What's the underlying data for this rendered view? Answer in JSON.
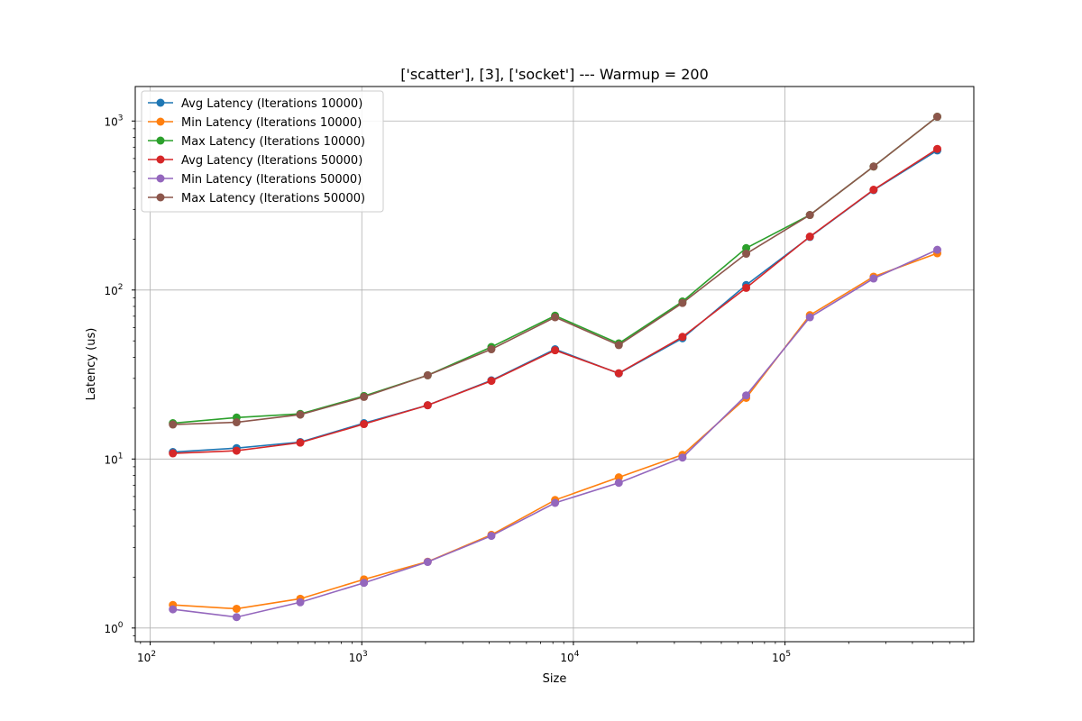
{
  "chart_data": {
    "type": "line",
    "title": "['scatter'], [3], ['socket']  --- Warmup = 200",
    "xlabel": "Size",
    "ylabel": "Latency (us)",
    "xscale": "log",
    "yscale": "log",
    "xlim": [
      85,
      780000
    ],
    "ylim": [
      0.83,
      1600
    ],
    "x_ticks": [
      100,
      1000,
      10000,
      100000
    ],
    "x_tick_labels": [
      {
        "base": "10",
        "exp": "2"
      },
      {
        "base": "10",
        "exp": "3"
      },
      {
        "base": "10",
        "exp": "4"
      },
      {
        "base": "10",
        "exp": "5"
      }
    ],
    "y_ticks": [
      1,
      10,
      100,
      1000
    ],
    "y_tick_labels": [
      {
        "base": "10",
        "exp": "0"
      },
      {
        "base": "10",
        "exp": "1"
      },
      {
        "base": "10",
        "exp": "2"
      },
      {
        "base": "10",
        "exp": "3"
      }
    ],
    "grid": true,
    "legend_position": "upper-left",
    "x": [
      128,
      256,
      512,
      1024,
      2048,
      4096,
      8192,
      16384,
      32768,
      65536,
      131072,
      262144,
      524288
    ],
    "series": [
      {
        "name": "Avg Latency (Iterations 10000)",
        "color": "#1f77b4",
        "values": [
          11.0,
          11.6,
          12.6,
          16.3,
          20.8,
          29.2,
          44.6,
          32.1,
          51.8,
          107,
          206,
          390,
          670
        ]
      },
      {
        "name": "Min Latency (Iterations 10000)",
        "color": "#ff7f0e",
        "values": [
          1.37,
          1.3,
          1.49,
          1.94,
          2.47,
          3.56,
          5.72,
          7.79,
          10.6,
          23.0,
          71.0,
          120,
          165
        ]
      },
      {
        "name": "Max Latency (Iterations 10000)",
        "color": "#2ca02c",
        "values": [
          16.3,
          17.6,
          18.5,
          23.6,
          31.3,
          46.0,
          70.5,
          48.3,
          85.5,
          177,
          278,
          538,
          1060
        ]
      },
      {
        "name": "Avg Latency (Iterations 50000)",
        "color": "#d62728",
        "values": [
          10.8,
          11.2,
          12.5,
          16.1,
          20.8,
          29.0,
          44.0,
          32.2,
          52.8,
          103,
          207,
          392,
          684
        ]
      },
      {
        "name": "Min Latency (Iterations 50000)",
        "color": "#9467bd",
        "values": [
          1.29,
          1.16,
          1.42,
          1.85,
          2.46,
          3.51,
          5.5,
          7.23,
          10.2,
          23.8,
          69.0,
          117,
          173
        ]
      },
      {
        "name": "Max Latency (Iterations 50000)",
        "color": "#8c564b",
        "values": [
          16.0,
          16.5,
          18.3,
          23.3,
          31.3,
          44.6,
          69.0,
          47.2,
          83.8,
          164,
          278,
          538,
          1060
        ]
      }
    ]
  }
}
